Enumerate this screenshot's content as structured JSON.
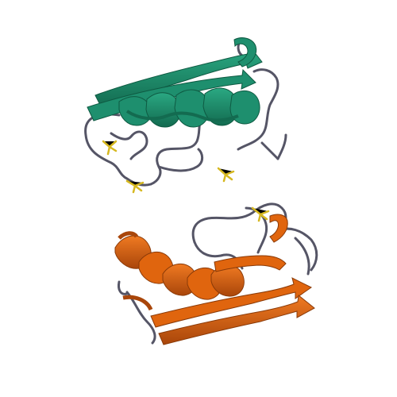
{
  "scene": {
    "colors": {
      "background": "#ffffff",
      "chain_a": "#1e8f6e",
      "chain_a_dark": "#136b50",
      "chain_b": "#e0650e",
      "chain_b_dark": "#a9460a",
      "coil": "#555566",
      "ligand": "#d6b820"
    },
    "chains": [
      {
        "id": "A",
        "color_key": "chain_a"
      },
      {
        "id": "B",
        "color_key": "chain_b"
      }
    ],
    "ligand_count": 4
  }
}
